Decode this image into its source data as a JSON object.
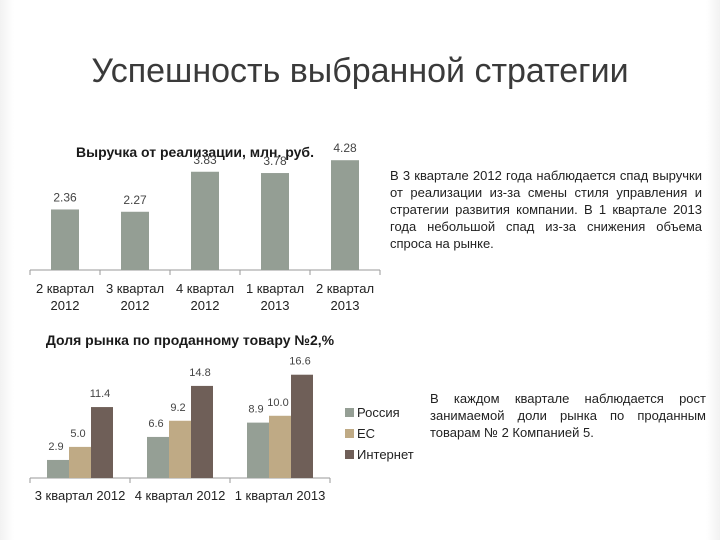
{
  "slide": {
    "title": "Успешность выбранной стратегии"
  },
  "chart_data": [
    {
      "type": "bar",
      "title": "Выручка от реализации, млн. руб.",
      "categories": [
        "2 квартал 2012",
        "3 квартал 2012",
        "4 квартал 2012",
        "1 квартал 2013",
        "2 квартал 2013"
      ],
      "category_lines": [
        [
          "2 квартал",
          "2012"
        ],
        [
          "3 квартал",
          "2012"
        ],
        [
          "4 квартал",
          "2012"
        ],
        [
          "1 квартал",
          "2013"
        ],
        [
          "2 квартал",
          "2013"
        ]
      ],
      "values": [
        2.36,
        2.27,
        3.83,
        3.78,
        4.28
      ],
      "value_labels": [
        "2.36",
        "2.27",
        "3.83",
        "3.78",
        "4.28"
      ],
      "ylim": [
        0,
        4.6
      ],
      "color": "#949e94",
      "xlabel": "",
      "ylabel": ""
    },
    {
      "type": "bar",
      "title": "Доля рынка по проданному товару №2,%",
      "categories": [
        "3 квартал 2012",
        "4 квартал 2012",
        "1 квартал 2013"
      ],
      "series": [
        {
          "name": "Россия",
          "values": [
            2.9,
            6.6,
            8.9
          ],
          "labels": [
            "2.9",
            "6.6",
            "8.9"
          ],
          "color": "#959f95"
        },
        {
          "name": "ЕС",
          "values": [
            5.0,
            9.2,
            10.0
          ],
          "labels": [
            "5.0",
            "9.2",
            "10.0"
          ],
          "color": "#bfaa85"
        },
        {
          "name": "Интернет",
          "values": [
            11.4,
            14.8,
            16.6
          ],
          "labels": [
            "11.4",
            "14.8",
            "16.6"
          ],
          "color": "#6f5f58"
        }
      ],
      "ylim": [
        0,
        18
      ],
      "legend": "right",
      "xlabel": "",
      "ylabel": ""
    }
  ],
  "text_blocks": {
    "desc1": "В 3 квартале 2012 года наблюдается спад выручки от реализации из-за смены стиля управления и стратегии развития компании. В 1 квартале 2013 года небольшой спад из-за снижения объема спроса на рынке.",
    "desc2": "В каждом квартале наблюдается рост занимаемой доли рынка по проданным товарам № 2 Компанией 5."
  }
}
